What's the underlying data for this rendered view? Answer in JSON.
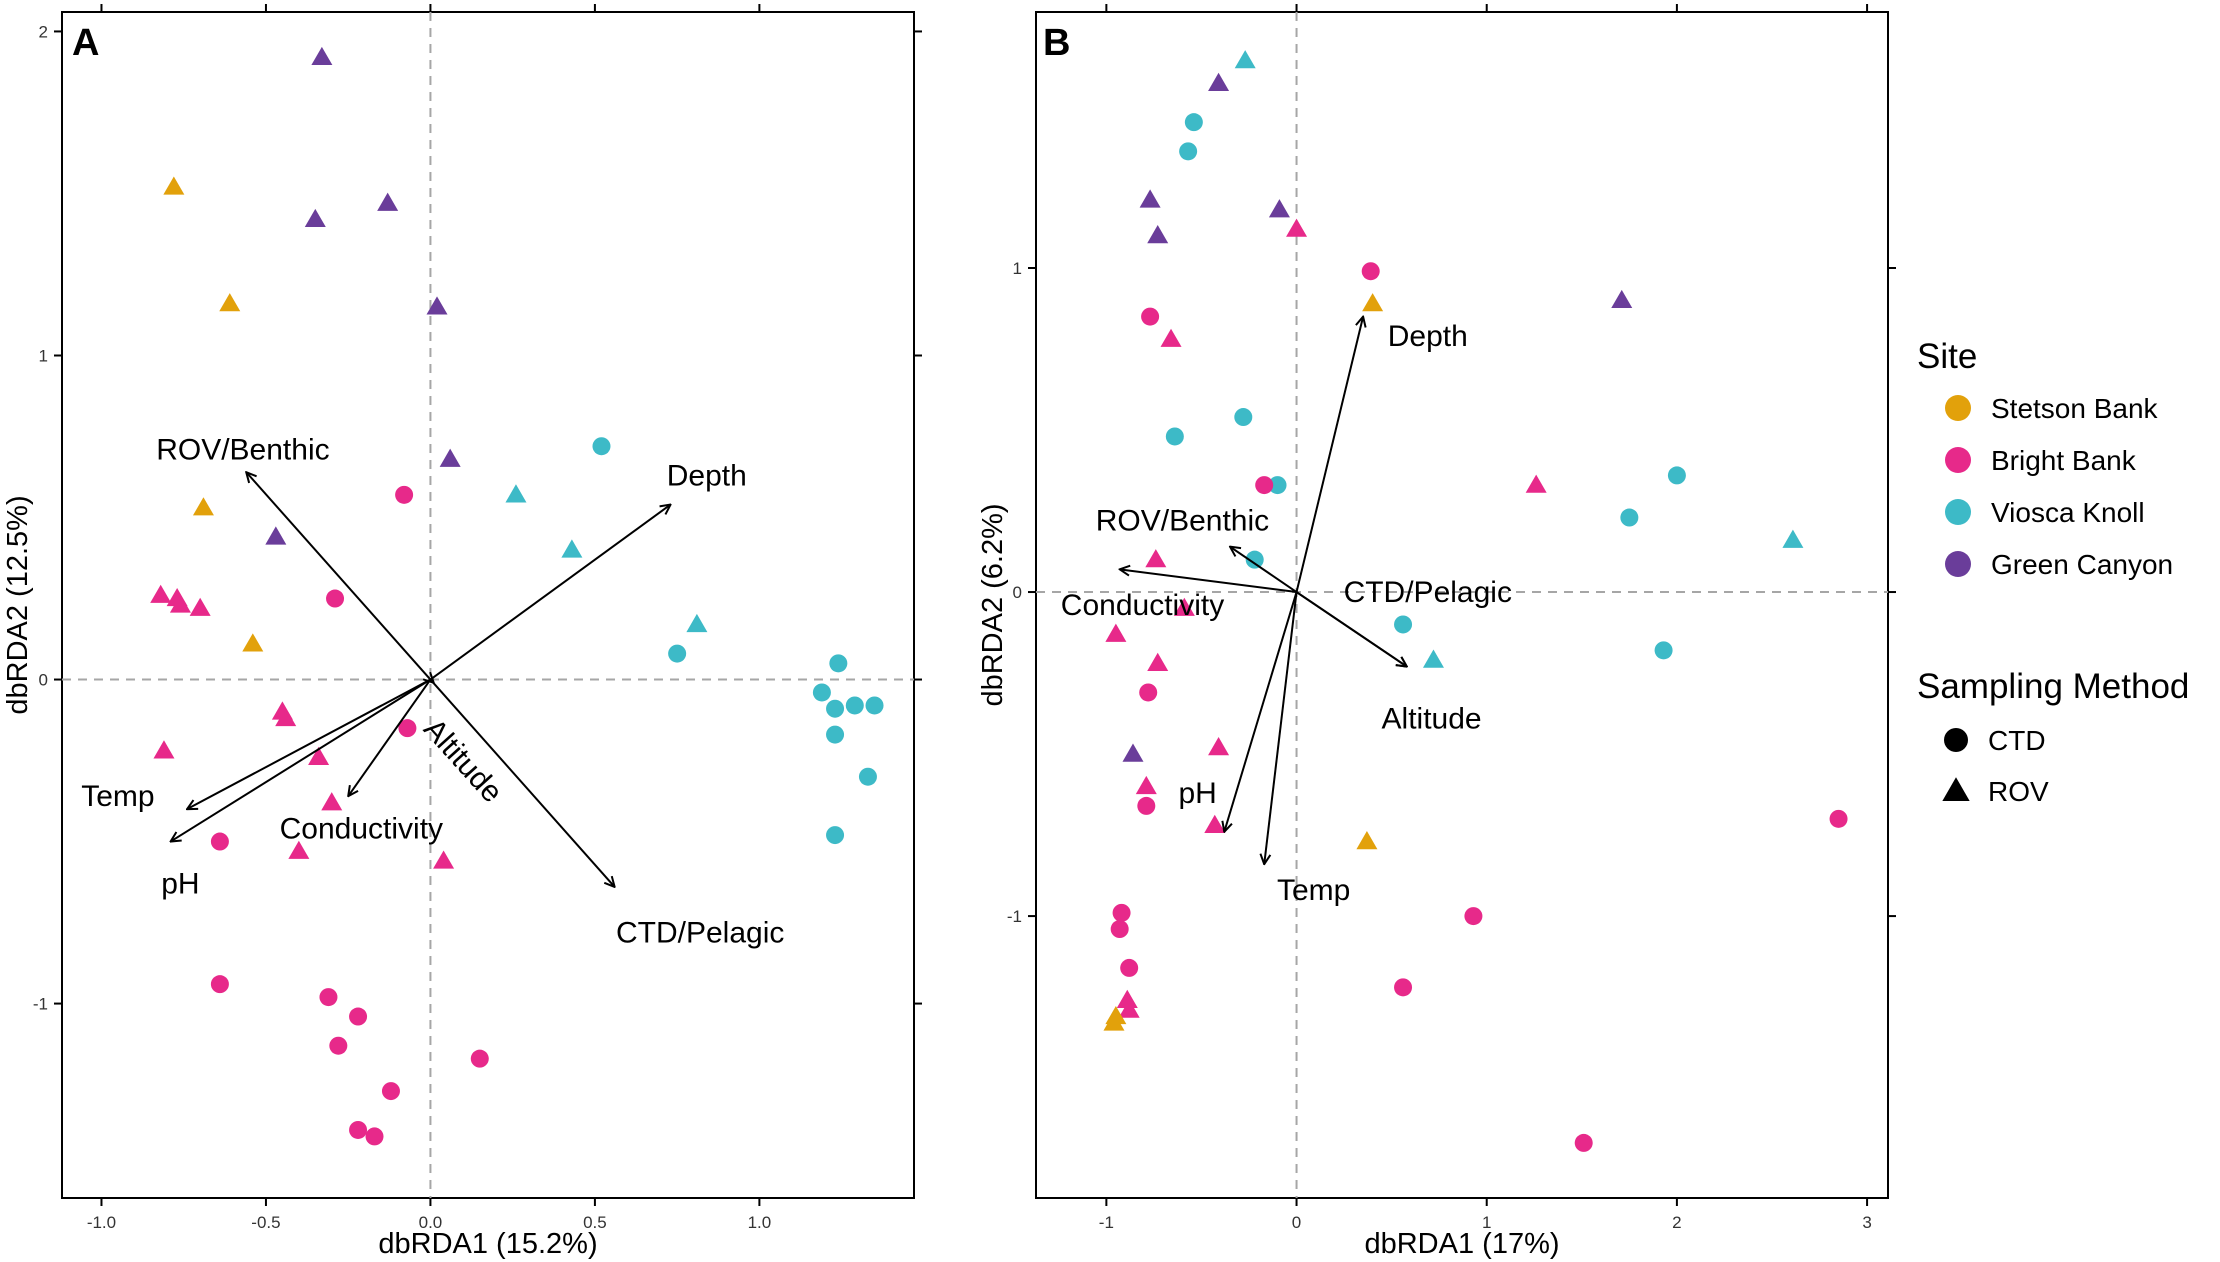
{
  "colors": {
    "stetson": "#E2A10B",
    "bright": "#E7298A",
    "viosca": "#3DBAC7",
    "green": "#6A3D9A",
    "axis": "#000000",
    "refline": "#A6A6A6"
  },
  "legend": {
    "site_title": "Site",
    "sites": [
      {
        "key": "stetson",
        "label": "Stetson Bank"
      },
      {
        "key": "bright",
        "label": "Bright Bank"
      },
      {
        "key": "viosca",
        "label": "Viosca Knoll"
      },
      {
        "key": "green",
        "label": "Green Canyon"
      }
    ],
    "method_title": "Sampling Method",
    "methods": [
      {
        "shape": "circle",
        "label": "CTD"
      },
      {
        "shape": "triangle",
        "label": "ROV"
      }
    ]
  },
  "chart_data": [
    {
      "panel": "A",
      "type": "scatter",
      "xlabel": "dbRDA1 (15.2%)",
      "ylabel": "dbRDA2 (12.5%)",
      "xlim": [
        -1.12,
        1.47
      ],
      "ylim": [
        -1.6,
        2.06
      ],
      "xticks": [
        -1.0,
        -0.5,
        0.0,
        0.5,
        1.0
      ],
      "xtick_labels": [
        "-1.0",
        "-0.5",
        "0.0",
        "0.5",
        "1.0"
      ],
      "yticks": [
        -1,
        0,
        1,
        2
      ],
      "ytick_labels": [
        "-1",
        "0",
        "1",
        "2"
      ],
      "reference_lines": {
        "x": 0,
        "y": 0
      },
      "vectors": [
        {
          "label": "ROV/Benthic",
          "x": -0.56,
          "y": 0.64,
          "lx": -0.57,
          "ly": 0.71,
          "rot": 0
        },
        {
          "label": "Depth",
          "x": 0.73,
          "y": 0.54,
          "lx": 0.84,
          "ly": 0.63,
          "rot": 0
        },
        {
          "label": "Temp",
          "x": -0.74,
          "y": -0.4,
          "lx": -0.95,
          "ly": -0.36,
          "rot": 0
        },
        {
          "label": "pH",
          "x": -0.79,
          "y": -0.5,
          "lx": -0.76,
          "ly": -0.63,
          "rot": 0
        },
        {
          "label": "Conductivity",
          "x": -0.25,
          "y": -0.36,
          "lx": -0.21,
          "ly": -0.46,
          "rot": 0
        },
        {
          "label": "Altitude",
          "x": 0.01,
          "y": -0.01,
          "lx": 0.1,
          "ly": -0.25,
          "rot": 48
        },
        {
          "label": "CTD/Pelagic",
          "x": 0.56,
          "y": -0.64,
          "lx": 0.82,
          "ly": -0.78,
          "rot": 0
        }
      ],
      "points": [
        {
          "site": "green",
          "method": "ROV",
          "x": -0.33,
          "y": 1.92
        },
        {
          "site": "green",
          "method": "ROV",
          "x": -0.35,
          "y": 1.42
        },
        {
          "site": "green",
          "method": "ROV",
          "x": -0.13,
          "y": 1.47
        },
        {
          "site": "green",
          "method": "ROV",
          "x": 0.02,
          "y": 1.15
        },
        {
          "site": "green",
          "method": "ROV",
          "x": 0.06,
          "y": 0.68
        },
        {
          "site": "green",
          "method": "ROV",
          "x": -0.47,
          "y": 0.44
        },
        {
          "site": "stetson",
          "method": "ROV",
          "x": -0.78,
          "y": 1.52
        },
        {
          "site": "stetson",
          "method": "ROV",
          "x": -0.61,
          "y": 1.16
        },
        {
          "site": "stetson",
          "method": "ROV",
          "x": -0.69,
          "y": 0.53
        },
        {
          "site": "stetson",
          "method": "ROV",
          "x": -0.54,
          "y": 0.11
        },
        {
          "site": "bright",
          "method": "ROV",
          "x": -0.82,
          "y": 0.26
        },
        {
          "site": "bright",
          "method": "ROV",
          "x": -0.77,
          "y": 0.25
        },
        {
          "site": "bright",
          "method": "ROV",
          "x": -0.76,
          "y": 0.23
        },
        {
          "site": "bright",
          "method": "ROV",
          "x": -0.7,
          "y": 0.22
        },
        {
          "site": "bright",
          "method": "ROV",
          "x": -0.45,
          "y": -0.1
        },
        {
          "site": "bright",
          "method": "ROV",
          "x": -0.44,
          "y": -0.12
        },
        {
          "site": "bright",
          "method": "ROV",
          "x": -0.81,
          "y": -0.22
        },
        {
          "site": "bright",
          "method": "ROV",
          "x": -0.34,
          "y": -0.24
        },
        {
          "site": "bright",
          "method": "ROV",
          "x": -0.3,
          "y": -0.38
        },
        {
          "site": "bright",
          "method": "ROV",
          "x": -0.4,
          "y": -0.53
        },
        {
          "site": "bright",
          "method": "ROV",
          "x": 0.04,
          "y": -0.56
        },
        {
          "site": "bright",
          "method": "CTD",
          "x": -0.08,
          "y": 0.57
        },
        {
          "site": "bright",
          "method": "CTD",
          "x": -0.29,
          "y": 0.25
        },
        {
          "site": "bright",
          "method": "CTD",
          "x": -0.07,
          "y": -0.15
        },
        {
          "site": "bright",
          "method": "CTD",
          "x": -0.64,
          "y": -0.5
        },
        {
          "site": "bright",
          "method": "CTD",
          "x": -0.64,
          "y": -0.94
        },
        {
          "site": "bright",
          "method": "CTD",
          "x": -0.31,
          "y": -0.98
        },
        {
          "site": "bright",
          "method": "CTD",
          "x": -0.22,
          "y": -1.04
        },
        {
          "site": "bright",
          "method": "CTD",
          "x": -0.28,
          "y": -1.13
        },
        {
          "site": "bright",
          "method": "CTD",
          "x": 0.15,
          "y": -1.17
        },
        {
          "site": "bright",
          "method": "CTD",
          "x": -0.12,
          "y": -1.27
        },
        {
          "site": "bright",
          "method": "CTD",
          "x": -0.22,
          "y": -1.39
        },
        {
          "site": "bright",
          "method": "CTD",
          "x": -0.17,
          "y": -1.41
        },
        {
          "site": "viosca",
          "method": "ROV",
          "x": 0.26,
          "y": 0.57
        },
        {
          "site": "viosca",
          "method": "ROV",
          "x": 0.43,
          "y": 0.4
        },
        {
          "site": "viosca",
          "method": "ROV",
          "x": 0.81,
          "y": 0.17
        },
        {
          "site": "viosca",
          "method": "CTD",
          "x": 0.52,
          "y": 0.72
        },
        {
          "site": "viosca",
          "method": "CTD",
          "x": 0.75,
          "y": 0.08
        },
        {
          "site": "viosca",
          "method": "CTD",
          "x": 1.24,
          "y": 0.05
        },
        {
          "site": "viosca",
          "method": "CTD",
          "x": 1.19,
          "y": -0.04
        },
        {
          "site": "viosca",
          "method": "CTD",
          "x": 1.23,
          "y": -0.09
        },
        {
          "site": "viosca",
          "method": "CTD",
          "x": 1.29,
          "y": -0.08
        },
        {
          "site": "viosca",
          "method": "CTD",
          "x": 1.35,
          "y": -0.08
        },
        {
          "site": "viosca",
          "method": "CTD",
          "x": 1.23,
          "y": -0.17
        },
        {
          "site": "viosca",
          "method": "CTD",
          "x": 1.33,
          "y": -0.3
        },
        {
          "site": "viosca",
          "method": "CTD",
          "x": 1.23,
          "y": -0.48
        }
      ]
    },
    {
      "panel": "B",
      "type": "scatter",
      "xlabel": "dbRDA1 (17%)",
      "ylabel": "dbRDA2 (6.2%)",
      "xlim": [
        -1.37,
        3.11
      ],
      "ylim": [
        -1.87,
        1.79
      ],
      "xticks": [
        -1,
        0,
        1,
        2,
        3
      ],
      "xtick_labels": [
        "-1",
        "0",
        "1",
        "2",
        "3"
      ],
      "yticks": [
        -1,
        0,
        1
      ],
      "ytick_labels": [
        "-1",
        "0",
        "1"
      ],
      "reference_lines": {
        "x": 0,
        "y": 0
      },
      "vectors": [
        {
          "label": "Depth",
          "x": 0.35,
          "y": 0.85,
          "lx": 0.69,
          "ly": 0.79,
          "rot": 0
        },
        {
          "label": "ROV/Benthic",
          "x": -0.35,
          "y": 0.14,
          "lx": -0.6,
          "ly": 0.22,
          "rot": 0
        },
        {
          "label": "Conductivity",
          "x": -0.93,
          "y": 0.07,
          "lx": -0.81,
          "ly": -0.04,
          "rot": 0
        },
        {
          "label": "CTD/Pelagic",
          "x": 0.58,
          "y": -0.23,
          "lx": 0.69,
          "ly": 0.0,
          "rot": 0
        },
        {
          "label": "Altitude",
          "x": 0.58,
          "y": -0.23,
          "lx": 0.71,
          "ly": -0.39,
          "rot": 0
        },
        {
          "label": "pH",
          "x": -0.38,
          "y": -0.74,
          "lx": -0.52,
          "ly": -0.62,
          "rot": 0
        },
        {
          "label": "Temp",
          "x": -0.17,
          "y": -0.84,
          "lx": 0.09,
          "ly": -0.92,
          "rot": 0
        }
      ],
      "points": [
        {
          "site": "viosca",
          "method": "ROV",
          "x": -0.27,
          "y": 1.64
        },
        {
          "site": "viosca",
          "method": "CTD",
          "x": -0.54,
          "y": 1.45
        },
        {
          "site": "viosca",
          "method": "CTD",
          "x": -0.57,
          "y": 1.36
        },
        {
          "site": "viosca",
          "method": "CTD",
          "x": -0.64,
          "y": 0.48
        },
        {
          "site": "viosca",
          "method": "CTD",
          "x": -0.28,
          "y": 0.54
        },
        {
          "site": "viosca",
          "method": "CTD",
          "x": -0.1,
          "y": 0.33
        },
        {
          "site": "viosca",
          "method": "CTD",
          "x": -0.22,
          "y": 0.1
        },
        {
          "site": "viosca",
          "method": "CTD",
          "x": 0.56,
          "y": -0.1
        },
        {
          "site": "viosca",
          "method": "ROV",
          "x": 0.72,
          "y": -0.21
        },
        {
          "site": "viosca",
          "method": "CTD",
          "x": 2.0,
          "y": 0.36
        },
        {
          "site": "viosca",
          "method": "CTD",
          "x": 1.75,
          "y": 0.23
        },
        {
          "site": "viosca",
          "method": "ROV",
          "x": 2.61,
          "y": 0.16
        },
        {
          "site": "viosca",
          "method": "CTD",
          "x": 1.93,
          "y": -0.18
        },
        {
          "site": "green",
          "method": "ROV",
          "x": -0.41,
          "y": 1.57
        },
        {
          "site": "green",
          "method": "ROV",
          "x": -0.77,
          "y": 1.21
        },
        {
          "site": "green",
          "method": "ROV",
          "x": -0.73,
          "y": 1.1
        },
        {
          "site": "green",
          "method": "ROV",
          "x": -0.09,
          "y": 1.18
        },
        {
          "site": "green",
          "method": "ROV",
          "x": 1.71,
          "y": 0.9
        },
        {
          "site": "green",
          "method": "ROV",
          "x": -0.86,
          "y": -0.5
        },
        {
          "site": "bright",
          "method": "ROV",
          "x": 0.0,
          "y": 1.12
        },
        {
          "site": "bright",
          "method": "CTD",
          "x": 0.39,
          "y": 0.99
        },
        {
          "site": "bright",
          "method": "CTD",
          "x": -0.77,
          "y": 0.85
        },
        {
          "site": "bright",
          "method": "ROV",
          "x": -0.66,
          "y": 0.78
        },
        {
          "site": "bright",
          "method": "CTD",
          "x": -0.17,
          "y": 0.33
        },
        {
          "site": "bright",
          "method": "ROV",
          "x": 1.26,
          "y": 0.33
        },
        {
          "site": "bright",
          "method": "ROV",
          "x": -0.74,
          "y": 0.1
        },
        {
          "site": "bright",
          "method": "ROV",
          "x": -0.59,
          "y": -0.05
        },
        {
          "site": "bright",
          "method": "ROV",
          "x": -0.95,
          "y": -0.13
        },
        {
          "site": "bright",
          "method": "ROV",
          "x": -0.73,
          "y": -0.22
        },
        {
          "site": "bright",
          "method": "CTD",
          "x": -0.78,
          "y": -0.31
        },
        {
          "site": "bright",
          "method": "ROV",
          "x": -0.41,
          "y": -0.48
        },
        {
          "site": "bright",
          "method": "ROV",
          "x": -0.79,
          "y": -0.6
        },
        {
          "site": "bright",
          "method": "CTD",
          "x": -0.79,
          "y": -0.66
        },
        {
          "site": "bright",
          "method": "ROV",
          "x": -0.43,
          "y": -0.72
        },
        {
          "site": "bright",
          "method": "CTD",
          "x": 2.85,
          "y": -0.7
        },
        {
          "site": "bright",
          "method": "CTD",
          "x": -0.92,
          "y": -0.99
        },
        {
          "site": "bright",
          "method": "CTD",
          "x": -0.93,
          "y": -1.04
        },
        {
          "site": "bright",
          "method": "CTD",
          "x": -0.88,
          "y": -1.16
        },
        {
          "site": "bright",
          "method": "CTD",
          "x": 0.93,
          "y": -1.0
        },
        {
          "site": "bright",
          "method": "CTD",
          "x": 0.56,
          "y": -1.22
        },
        {
          "site": "bright",
          "method": "ROV",
          "x": -0.89,
          "y": -1.26
        },
        {
          "site": "bright",
          "method": "ROV",
          "x": -0.88,
          "y": -1.29
        },
        {
          "site": "bright",
          "method": "CTD",
          "x": 1.51,
          "y": -1.7
        },
        {
          "site": "stetson",
          "method": "ROV",
          "x": 0.4,
          "y": 0.89
        },
        {
          "site": "stetson",
          "method": "ROV",
          "x": 0.37,
          "y": -0.77
        },
        {
          "site": "stetson",
          "method": "ROV",
          "x": -0.95,
          "y": -1.31
        },
        {
          "site": "stetson",
          "method": "ROV",
          "x": -0.96,
          "y": -1.33
        }
      ]
    }
  ]
}
